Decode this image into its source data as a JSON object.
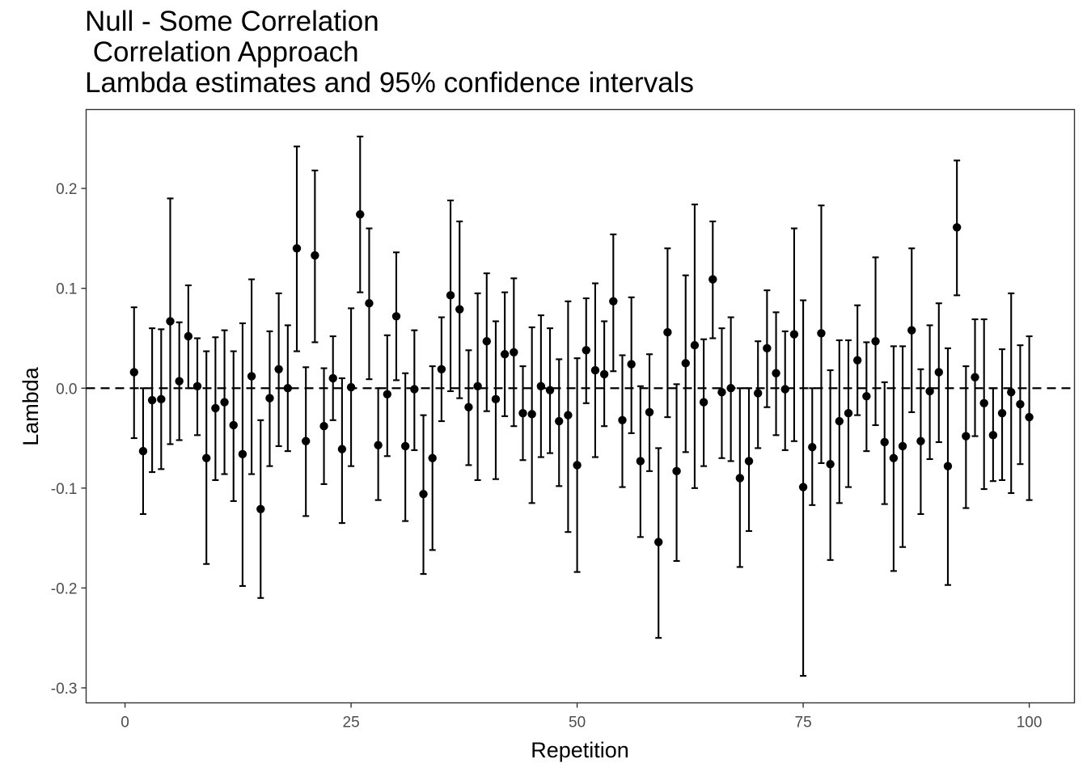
{
  "chart_data": {
    "type": "scatter",
    "title_lines": [
      "Null - Some Correlation",
      " Correlation Approach",
      "Lambda estimates and 95% confidence intervals"
    ],
    "xlabel": "Repetition",
    "ylabel": "Lambda",
    "xlim": [
      -4.3,
      105
    ],
    "ylim": [
      -0.315,
      0.279
    ],
    "x_ticks": [
      0,
      25,
      50,
      75,
      100
    ],
    "y_ticks": [
      -0.3,
      -0.2,
      -0.1,
      0.0,
      0.1,
      0.2
    ],
    "x_tick_labels": [
      "0",
      "25",
      "50",
      "75",
      "100"
    ],
    "y_tick_labels": [
      "-0.3",
      "-0.2",
      "-0.1",
      "0.0",
      "0.1",
      "0.2"
    ],
    "reference_line": {
      "y": 0,
      "style": "dashed"
    },
    "grid": false,
    "series": [
      {
        "x": [
          1,
          2,
          3,
          4,
          5,
          6,
          7,
          8,
          9,
          10,
          11,
          12,
          13,
          14,
          15,
          16,
          17,
          18,
          19,
          20,
          21,
          22,
          23,
          24,
          25,
          26,
          27,
          28,
          29,
          30,
          31,
          32,
          33,
          34,
          35,
          36,
          37,
          38,
          39,
          40,
          41,
          42,
          43,
          44,
          45,
          46,
          47,
          48,
          49,
          50,
          51,
          52,
          53,
          54,
          55,
          56,
          57,
          58,
          59,
          60,
          61,
          62,
          63,
          64,
          65,
          66,
          67,
          68,
          69,
          70,
          71,
          72,
          73,
          74,
          75,
          76,
          77,
          78,
          79,
          80,
          81,
          82,
          83,
          84,
          85,
          86,
          87,
          88,
          89,
          90,
          91,
          92,
          93,
          94,
          95,
          96,
          97,
          98,
          99,
          100
        ],
        "estimate": [
          0.016,
          -0.063,
          -0.012,
          -0.011,
          0.067,
          0.007,
          0.052,
          0.002,
          -0.07,
          -0.02,
          -0.014,
          -0.037,
          -0.066,
          0.012,
          -0.121,
          -0.01,
          0.019,
          0.0,
          0.14,
          -0.053,
          0.133,
          -0.038,
          0.01,
          -0.061,
          0.001,
          0.174,
          0.085,
          -0.057,
          -0.006,
          0.072,
          -0.058,
          -0.001,
          -0.106,
          -0.07,
          0.019,
          0.093,
          0.079,
          -0.019,
          0.002,
          0.047,
          -0.011,
          0.034,
          0.036,
          -0.025,
          -0.026,
          0.002,
          -0.002,
          -0.033,
          -0.027,
          -0.077,
          0.038,
          0.018,
          0.014,
          0.087,
          -0.032,
          0.024,
          -0.073,
          -0.024,
          -0.154,
          0.056,
          -0.083,
          0.025,
          0.043,
          -0.014,
          0.109,
          -0.004,
          0.0,
          -0.09,
          -0.073,
          -0.005,
          0.04,
          0.015,
          -0.001,
          0.054,
          -0.099,
          -0.059,
          0.055,
          -0.076,
          -0.033,
          -0.025,
          0.028,
          -0.008,
          0.047,
          -0.054,
          -0.07,
          -0.058,
          0.058,
          -0.053,
          -0.003,
          0.016,
          -0.078,
          0.161,
          -0.048,
          0.011,
          -0.015,
          -0.047,
          -0.025,
          -0.004,
          -0.016,
          -0.029
        ],
        "lower": [
          -0.05,
          -0.126,
          -0.084,
          -0.081,
          -0.056,
          -0.052,
          0.0,
          -0.047,
          -0.176,
          -0.092,
          -0.086,
          -0.113,
          -0.198,
          -0.086,
          -0.21,
          -0.078,
          -0.058,
          -0.063,
          0.037,
          -0.128,
          0.046,
          -0.096,
          -0.032,
          -0.135,
          -0.078,
          0.096,
          0.009,
          -0.112,
          -0.068,
          0.008,
          -0.133,
          -0.062,
          -0.186,
          -0.162,
          -0.033,
          -0.003,
          -0.01,
          -0.077,
          -0.092,
          -0.023,
          -0.091,
          -0.028,
          -0.038,
          -0.072,
          -0.115,
          -0.069,
          -0.065,
          -0.098,
          -0.144,
          -0.184,
          -0.015,
          -0.069,
          -0.038,
          0.017,
          -0.099,
          -0.045,
          -0.149,
          -0.083,
          -0.25,
          -0.029,
          -0.173,
          -0.064,
          -0.1,
          -0.078,
          0.05,
          -0.07,
          -0.073,
          -0.179,
          -0.143,
          -0.06,
          -0.019,
          -0.047,
          -0.062,
          -0.053,
          -0.288,
          -0.117,
          -0.075,
          -0.172,
          -0.115,
          -0.099,
          -0.027,
          -0.063,
          -0.037,
          -0.116,
          -0.183,
          -0.159,
          -0.024,
          -0.126,
          -0.071,
          -0.054,
          -0.197,
          0.093,
          -0.12,
          -0.048,
          -0.101,
          -0.093,
          -0.092,
          -0.105,
          -0.076,
          -0.112
        ],
        "upper": [
          0.081,
          0.0,
          0.06,
          0.059,
          0.19,
          0.066,
          0.103,
          0.05,
          0.037,
          0.051,
          0.058,
          0.037,
          0.065,
          0.109,
          -0.032,
          0.057,
          0.095,
          0.063,
          0.242,
          0.021,
          0.218,
          0.02,
          0.052,
          0.01,
          0.08,
          0.252,
          0.16,
          0.0,
          0.053,
          0.136,
          0.015,
          0.058,
          -0.027,
          0.022,
          0.071,
          0.188,
          0.167,
          0.038,
          0.095,
          0.115,
          0.067,
          0.096,
          0.11,
          0.022,
          0.061,
          0.073,
          0.06,
          0.029,
          0.087,
          0.03,
          0.09,
          0.105,
          0.067,
          0.154,
          0.033,
          0.091,
          0.002,
          0.034,
          -0.06,
          0.14,
          0.004,
          0.113,
          0.184,
          0.049,
          0.167,
          0.06,
          0.071,
          0.0,
          0.0,
          0.047,
          0.098,
          0.076,
          0.057,
          0.16,
          0.088,
          0.0,
          0.183,
          0.018,
          0.048,
          0.048,
          0.083,
          0.046,
          0.131,
          0.006,
          0.042,
          0.042,
          0.14,
          0.019,
          0.063,
          0.085,
          0.04,
          0.228,
          0.022,
          0.069,
          0.069,
          0.0,
          0.039,
          0.095,
          0.043,
          0.052
        ]
      }
    ]
  }
}
